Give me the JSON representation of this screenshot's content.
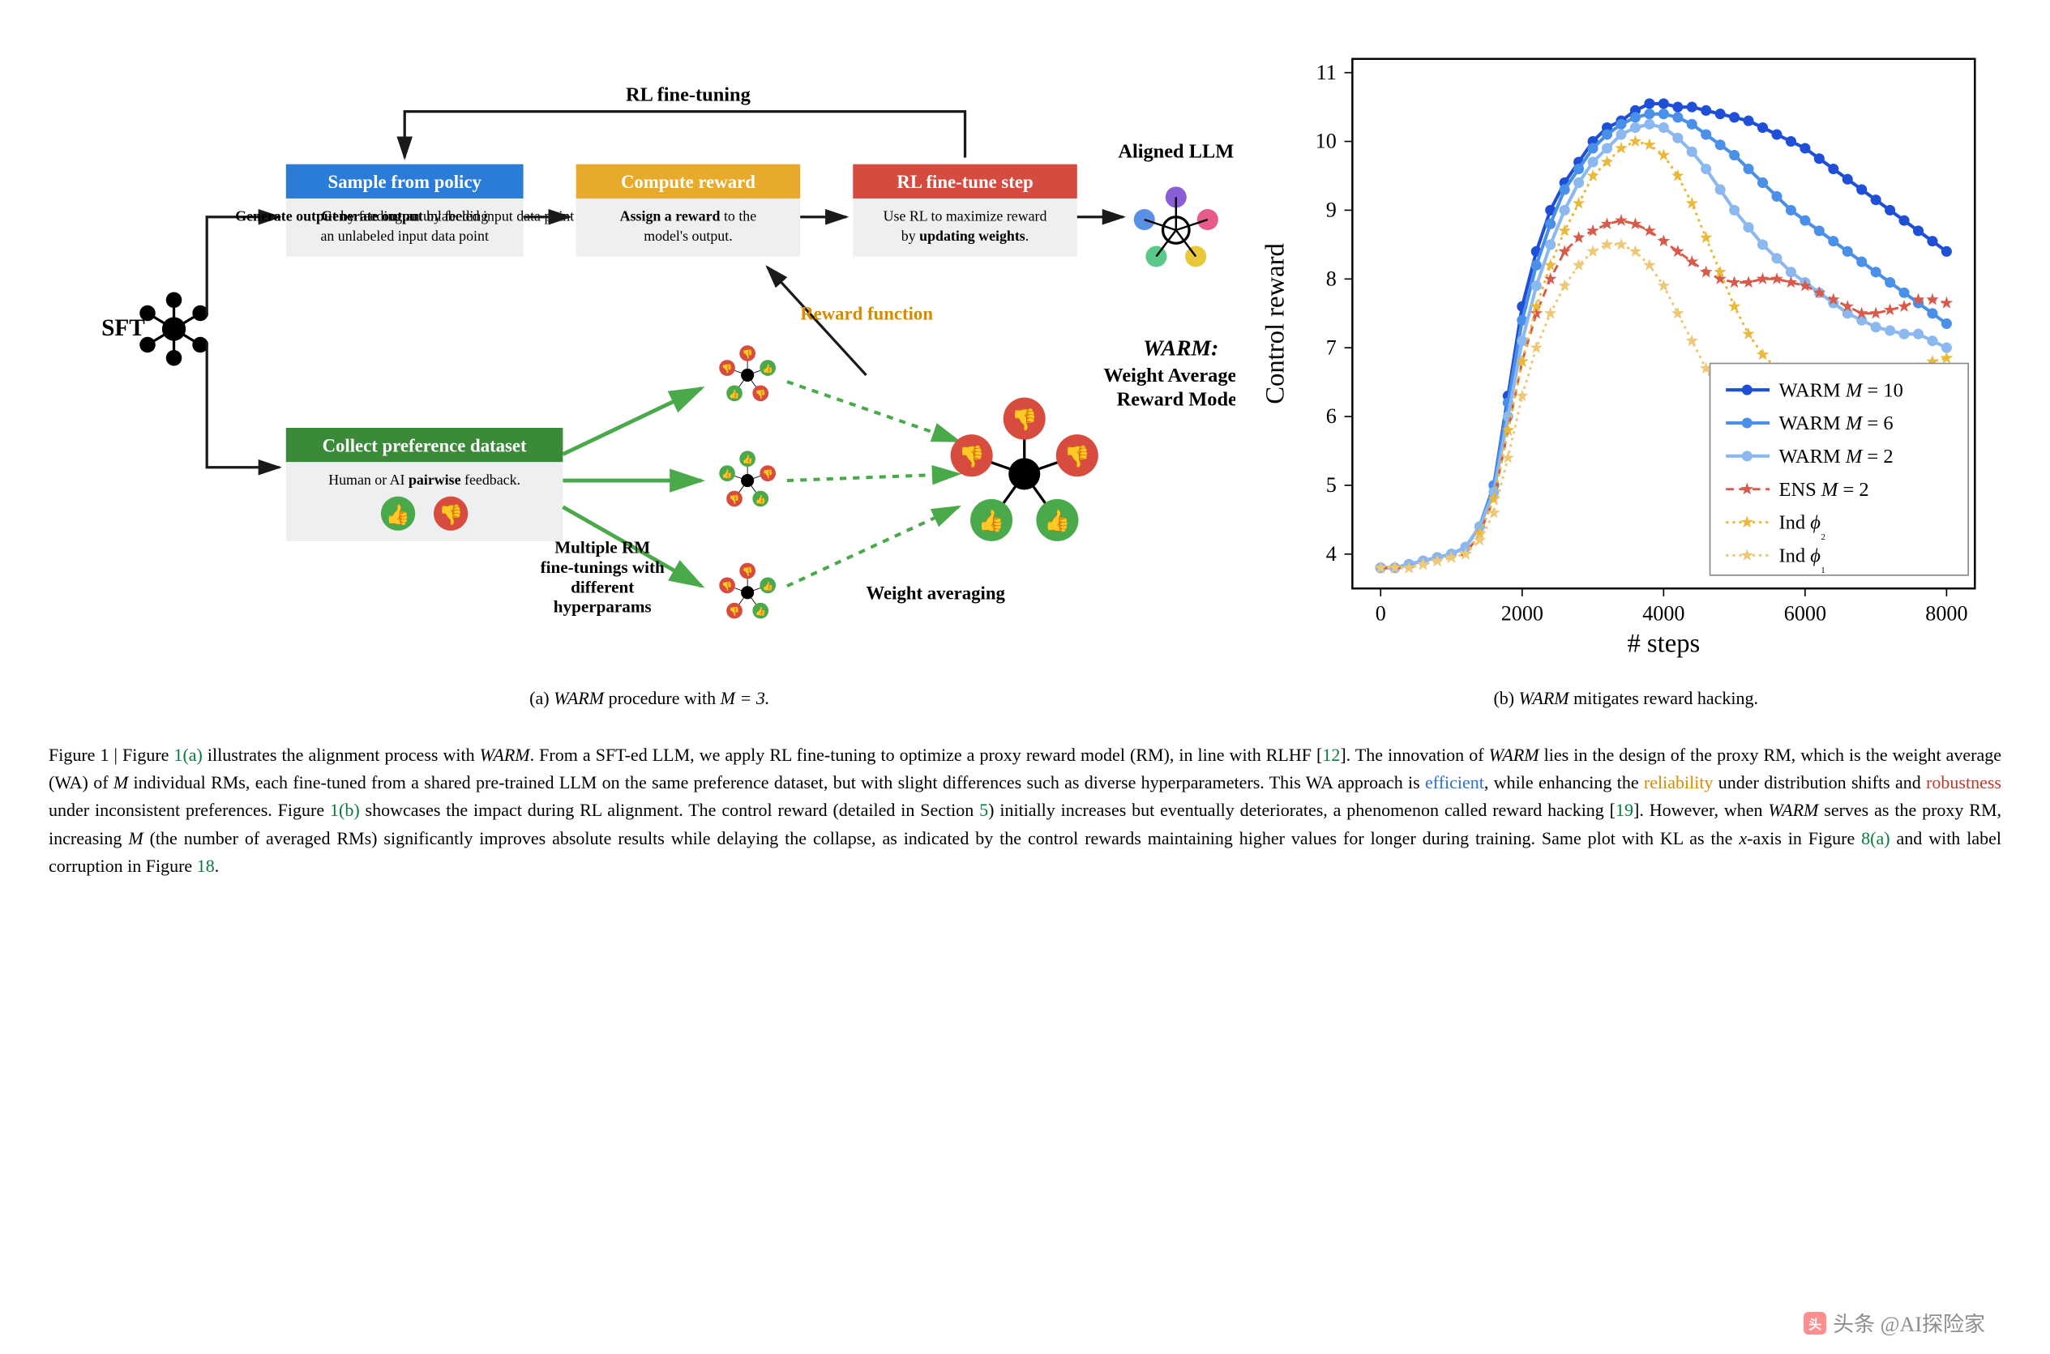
{
  "diagram": {
    "sft_label": "SFT",
    "rl_finetuning_label": "RL fine-tuning",
    "aligned_llm_label": "Aligned LLM",
    "reward_function_label": "Reward function",
    "weight_averaging_label": "Weight averaging",
    "multiple_rm_label_1": "Multiple RM",
    "multiple_rm_label_2": "fine-tunings with",
    "multiple_rm_label_3": "different",
    "multiple_rm_label_4": "hyperparams",
    "warm_title_1": "WARM:",
    "warm_title_2": "Weight Averaged",
    "warm_title_3": "Reward Model",
    "boxes": {
      "sample": {
        "header": "Sample from policy",
        "body_bold": "Generate output",
        "body_rest": " by feeding an unlabeled input data point",
        "header_bg": "#2b7cd6",
        "body_bg": "#edeff1"
      },
      "reward": {
        "header": "Compute reward",
        "body_bold": "Assign a reward",
        "body_rest": " to the model's output.",
        "header_bg": "#e8aa2a",
        "body_bg": "#edeff1"
      },
      "step": {
        "header": "RL fine-tune step",
        "body_pre": "Use RL to maximize reward by ",
        "body_bold": "updating weights",
        "header_bg": "#d64b3f",
        "body_bg": "#edeff1"
      },
      "collect": {
        "header": "Collect preference dataset",
        "body_pre": "Human or AI ",
        "body_bold": "pairwise",
        "body_rest": " feedback.",
        "header_bg": "#3a8a3a",
        "body_bg": "#edeff1"
      }
    },
    "colors": {
      "arrow": "#1a1a1a",
      "green_arrow": "#4aa94a",
      "orange_text": "#d68b00",
      "node_red": "#d84b3f",
      "node_green": "#4aa94a",
      "thumb_up": "#4aa94a",
      "thumb_down": "#d84b3f"
    }
  },
  "chart": {
    "type": "line",
    "title": "",
    "xlabel": "# steps",
    "ylabel": "Control reward",
    "xlim": [
      -400,
      8400
    ],
    "ylim": [
      3.5,
      11.2
    ],
    "xticks": [
      0,
      2000,
      4000,
      6000,
      8000
    ],
    "yticks": [
      4,
      5,
      6,
      7,
      8,
      9,
      10,
      11
    ],
    "label_fontsize": 20,
    "tick_fontsize": 16,
    "background_color": "#ffffff",
    "grid": false,
    "border_color": "#000000",
    "legend_position": "right",
    "series": [
      {
        "name": "WARM M = 10",
        "color": "#1f4fd6",
        "marker": "circle",
        "dash": "solid",
        "width": 2.5,
        "x": [
          0,
          200,
          400,
          600,
          800,
          1000,
          1200,
          1400,
          1600,
          1800,
          2000,
          2200,
          2400,
          2600,
          2800,
          3000,
          3200,
          3400,
          3600,
          3800,
          4000,
          4200,
          4400,
          4600,
          4800,
          5000,
          5200,
          5400,
          5600,
          5800,
          6000,
          6200,
          6400,
          6600,
          6800,
          7000,
          7200,
          7400,
          7600,
          7800,
          8000
        ],
        "y": [
          3.8,
          3.8,
          3.85,
          3.9,
          3.95,
          4.0,
          4.1,
          4.4,
          5.0,
          6.3,
          7.6,
          8.4,
          9.0,
          9.4,
          9.7,
          10.0,
          10.2,
          10.3,
          10.45,
          10.55,
          10.55,
          10.5,
          10.5,
          10.45,
          10.4,
          10.35,
          10.3,
          10.2,
          10.1,
          10.0,
          9.9,
          9.75,
          9.6,
          9.45,
          9.3,
          9.15,
          9.0,
          8.85,
          8.7,
          8.55,
          8.4
        ]
      },
      {
        "name": "WARM M = 6",
        "color": "#4a8fe8",
        "marker": "circle",
        "dash": "solid",
        "width": 2.5,
        "x": [
          0,
          200,
          400,
          600,
          800,
          1000,
          1200,
          1400,
          1600,
          1800,
          2000,
          2200,
          2400,
          2600,
          2800,
          3000,
          3200,
          3400,
          3600,
          3800,
          4000,
          4200,
          4400,
          4600,
          4800,
          5000,
          5200,
          5400,
          5600,
          5800,
          6000,
          6200,
          6400,
          6600,
          6800,
          7000,
          7200,
          7400,
          7600,
          7800,
          8000
        ],
        "y": [
          3.8,
          3.8,
          3.85,
          3.9,
          3.95,
          4.0,
          4.1,
          4.4,
          5.0,
          6.2,
          7.4,
          8.2,
          8.8,
          9.3,
          9.6,
          9.9,
          10.1,
          10.25,
          10.35,
          10.4,
          10.4,
          10.35,
          10.25,
          10.1,
          9.95,
          9.8,
          9.6,
          9.4,
          9.2,
          9.0,
          8.85,
          8.7,
          8.55,
          8.4,
          8.25,
          8.1,
          7.95,
          7.8,
          7.65,
          7.5,
          7.35
        ]
      },
      {
        "name": "WARM M = 2",
        "color": "#8ab8ef",
        "marker": "circle",
        "dash": "solid",
        "width": 2.5,
        "x": [
          0,
          200,
          400,
          600,
          800,
          1000,
          1200,
          1400,
          1600,
          1800,
          2000,
          2200,
          2400,
          2600,
          2800,
          3000,
          3200,
          3400,
          3600,
          3800,
          4000,
          4200,
          4400,
          4600,
          4800,
          5000,
          5200,
          5400,
          5600,
          5800,
          6000,
          6200,
          6400,
          6600,
          6800,
          7000,
          7200,
          7400,
          7600,
          7800,
          8000
        ],
        "y": [
          3.8,
          3.8,
          3.85,
          3.9,
          3.95,
          4.0,
          4.1,
          4.4,
          4.9,
          6.0,
          7.1,
          7.9,
          8.5,
          9.0,
          9.4,
          9.7,
          9.9,
          10.1,
          10.2,
          10.25,
          10.2,
          10.05,
          9.85,
          9.6,
          9.3,
          9.0,
          8.75,
          8.5,
          8.3,
          8.1,
          7.95,
          7.8,
          7.65,
          7.5,
          7.4,
          7.3,
          7.25,
          7.2,
          7.2,
          7.1,
          7.0
        ]
      },
      {
        "name": "ENS M = 2",
        "color": "#d85a4a",
        "marker": "star",
        "dash": "6,4",
        "width": 1.8,
        "x": [
          0,
          200,
          400,
          600,
          800,
          1000,
          1200,
          1400,
          1600,
          1800,
          2000,
          2200,
          2400,
          2600,
          2800,
          3000,
          3200,
          3400,
          3600,
          3800,
          4000,
          4200,
          4400,
          4600,
          4800,
          5000,
          5200,
          5400,
          5600,
          5800,
          6000,
          6200,
          6400,
          6600,
          6800,
          7000,
          7200,
          7400,
          7600,
          7800,
          8000
        ],
        "y": [
          3.8,
          3.8,
          3.8,
          3.85,
          3.9,
          3.95,
          4.0,
          4.3,
          4.8,
          5.8,
          6.8,
          7.5,
          8.0,
          8.4,
          8.6,
          8.7,
          8.8,
          8.85,
          8.8,
          8.7,
          8.55,
          8.4,
          8.25,
          8.1,
          8.0,
          7.95,
          7.95,
          8.0,
          8.0,
          7.95,
          7.9,
          7.8,
          7.7,
          7.6,
          7.5,
          7.5,
          7.55,
          7.6,
          7.7,
          7.7,
          7.65
        ]
      },
      {
        "name": "Ind φ₂",
        "color": "#e8b93a",
        "marker": "star",
        "dash": "2,3",
        "width": 1.8,
        "x": [
          0,
          200,
          400,
          600,
          800,
          1000,
          1200,
          1400,
          1600,
          1800,
          2000,
          2200,
          2400,
          2600,
          2800,
          3000,
          3200,
          3400,
          3600,
          3800,
          4000,
          4200,
          4400,
          4600,
          4800,
          5000,
          5200,
          5400,
          5600,
          5800,
          6000,
          6200,
          6400,
          6600,
          6800,
          7000,
          7200,
          7400,
          7600,
          7800,
          8000
        ],
        "y": [
          3.8,
          3.8,
          3.8,
          3.85,
          3.9,
          3.95,
          4.0,
          4.3,
          4.8,
          5.8,
          6.8,
          7.6,
          8.2,
          8.7,
          9.1,
          9.5,
          9.7,
          9.9,
          10.0,
          9.95,
          9.8,
          9.5,
          9.1,
          8.6,
          8.1,
          7.6,
          7.2,
          6.9,
          6.7,
          6.5,
          6.4,
          6.3,
          6.25,
          6.2,
          6.2,
          6.25,
          6.35,
          6.5,
          6.7,
          6.8,
          6.85
        ]
      },
      {
        "name": "Ind φ₁",
        "color": "#ecc877",
        "marker": "star",
        "dash": "2,3",
        "width": 1.8,
        "x": [
          0,
          200,
          400,
          600,
          800,
          1000,
          1200,
          1400,
          1600,
          1800,
          2000,
          2200,
          2400,
          2600,
          2800,
          3000,
          3200,
          3400,
          3600,
          3800,
          4000,
          4200,
          4400,
          4600,
          4800,
          5000,
          5200,
          5400,
          5600,
          5800,
          6000,
          6200,
          6400,
          6600,
          6800,
          7000,
          7200,
          7400,
          7600,
          7800,
          8000
        ],
        "y": [
          3.8,
          3.8,
          3.8,
          3.85,
          3.9,
          3.95,
          4.0,
          4.2,
          4.6,
          5.4,
          6.3,
          7.0,
          7.5,
          7.9,
          8.2,
          8.4,
          8.5,
          8.5,
          8.4,
          8.2,
          7.9,
          7.5,
          7.1,
          6.7,
          6.3,
          6.0,
          5.8,
          5.6,
          5.5,
          5.45,
          5.4,
          5.4,
          5.4,
          5.4,
          5.4,
          5.4,
          5.4,
          5.4,
          5.4,
          5.4,
          5.4
        ]
      }
    ]
  },
  "subcaptions": {
    "a_prefix": "(a) ",
    "a_ital": "WARM",
    "a_rest": " procedure with ",
    "a_math": "M = 3.",
    "b_prefix": "(b) ",
    "b_ital": "WARM",
    "b_rest": " mitigates reward hacking."
  },
  "caption": {
    "fig_label": "Figure 1",
    "t1": " | Figure ",
    "ref1a": "1(a)",
    "t2": " illustrates the alignment process with ",
    "warm": "WARM",
    "t3": ". From a SFT-ed LLM, we apply RL fine-tuning to optimize a proxy reward model (RM), in line with RLHF [",
    "ref12": "12",
    "t4": "]. The innovation of ",
    "t5": " lies in the design of the proxy RM, which is the weight average (WA) of ",
    "m_ital": "M",
    "t6": " individual RMs, each fine-tuned from a shared pre-trained LLM on the same preference dataset, but with slight differences such as diverse hyperparameters. This WA approach is ",
    "efficient": "efficient",
    "t7": ", while enhancing the ",
    "reliability": "reliability",
    "t8": " under distribution shifts and ",
    "robustness": "robustness",
    "t9": " under inconsistent preferences. Figure ",
    "ref1b": "1(b)",
    "t10": " showcases the impact during RL alignment. The control reward (detailed in Section ",
    "ref5": "5",
    "t11": ") initially increases but eventually deteriorates, a phenomenon called reward hacking [",
    "ref19": "19",
    "t12": "]. However, when ",
    "t13": " serves as the proxy RM, increasing ",
    "t14": " (the number of averaged RMs) significantly improves absolute results while delaying the collapse, as indicated by the control rewards maintaining higher values for longer during training. Same plot with KL as the ",
    "x_ital": "x",
    "t15": "-axis in Figure ",
    "ref8a": "8(a)",
    "t16": " and with label corruption in Figure ",
    "ref18": "18",
    "t17": "."
  },
  "watermark": {
    "text": "头条 @AI探险家"
  }
}
